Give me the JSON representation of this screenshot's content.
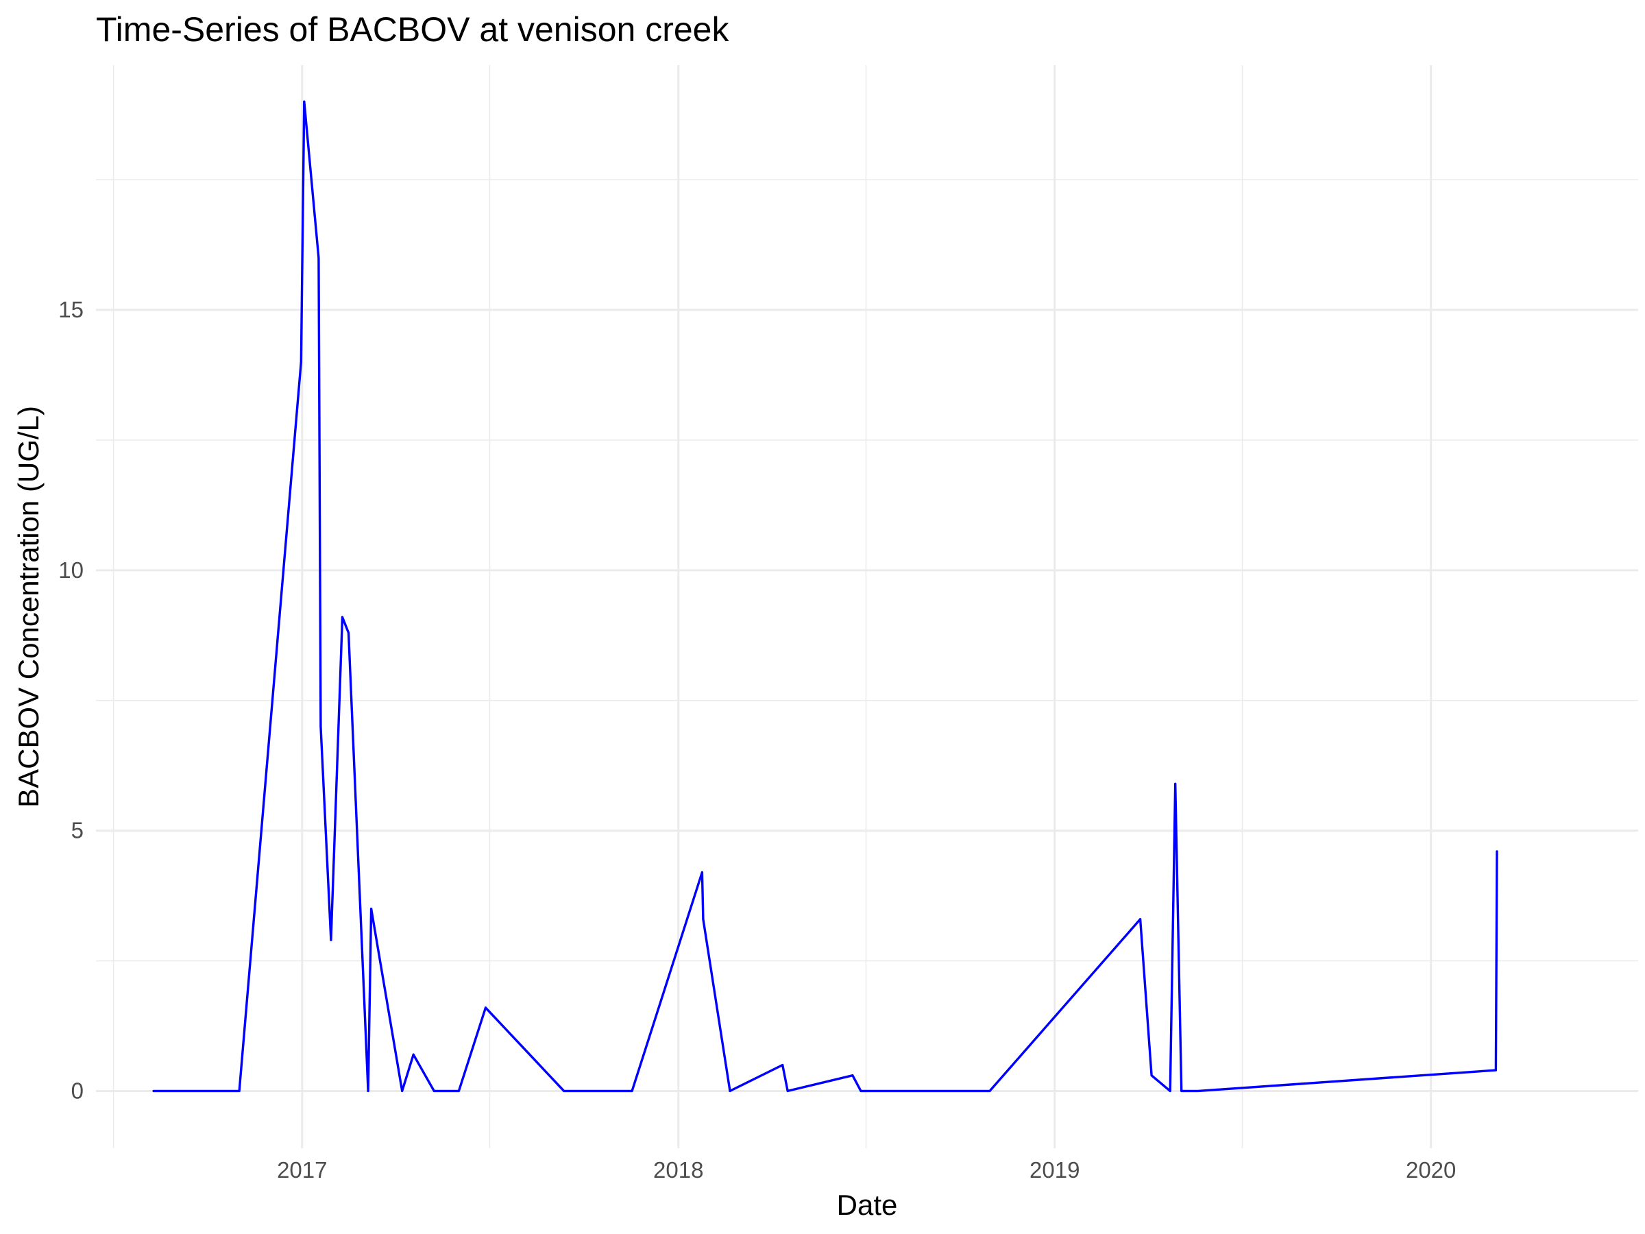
{
  "chart_data": {
    "type": "line",
    "title": "Time-Series of BACBOV at venison creek",
    "xlabel": "Date",
    "ylabel": "BACBOV Concentration (UG/L)",
    "x_type": "date",
    "xlim": [
      "2016-06-15",
      "2020-07-20"
    ],
    "ylim": [
      -1.1,
      19.7
    ],
    "x_ticks": [
      {
        "date": "2017-01-01",
        "label": "2017"
      },
      {
        "date": "2018-01-01",
        "label": "2018"
      },
      {
        "date": "2019-01-01",
        "label": "2019"
      },
      {
        "date": "2020-01-01",
        "label": "2020"
      }
    ],
    "x_minor_ticks": [
      "2016-07-02",
      "2017-07-02",
      "2018-07-02",
      "2019-07-02"
    ],
    "y_ticks": [
      0,
      5,
      10,
      15
    ],
    "y_minor_ticks": [
      2.5,
      7.5,
      12.5,
      17.5
    ],
    "grid": true,
    "legend": "none",
    "series": [
      {
        "color": "#0000ff",
        "points": [
          {
            "x": "2016-08-10",
            "y": 0
          },
          {
            "x": "2016-11-01",
            "y": 0
          },
          {
            "x": "2016-12-31",
            "y": 14
          },
          {
            "x": "2017-01-03",
            "y": 19
          },
          {
            "x": "2017-01-17",
            "y": 16
          },
          {
            "x": "2017-01-19",
            "y": 7
          },
          {
            "x": "2017-01-29",
            "y": 2.9
          },
          {
            "x": "2017-02-09",
            "y": 9.1
          },
          {
            "x": "2017-02-15",
            "y": 8.8
          },
          {
            "x": "2017-03-06",
            "y": 0
          },
          {
            "x": "2017-03-09",
            "y": 3.5
          },
          {
            "x": "2017-04-08",
            "y": 0
          },
          {
            "x": "2017-04-19",
            "y": 0.7
          },
          {
            "x": "2017-05-09",
            "y": 0
          },
          {
            "x": "2017-06-02",
            "y": 0
          },
          {
            "x": "2017-06-28",
            "y": 1.6
          },
          {
            "x": "2017-09-12",
            "y": 0
          },
          {
            "x": "2017-11-17",
            "y": 0
          },
          {
            "x": "2018-01-24",
            "y": 4.2
          },
          {
            "x": "2018-01-25",
            "y": 3.3
          },
          {
            "x": "2018-02-20",
            "y": 0
          },
          {
            "x": "2018-04-12",
            "y": 0.5
          },
          {
            "x": "2018-04-17",
            "y": 0
          },
          {
            "x": "2018-06-19",
            "y": 0.3
          },
          {
            "x": "2018-06-27",
            "y": 0
          },
          {
            "x": "2018-10-30",
            "y": 0
          },
          {
            "x": "2019-03-25",
            "y": 3.3
          },
          {
            "x": "2019-04-05",
            "y": 0.3
          },
          {
            "x": "2019-04-23",
            "y": 0
          },
          {
            "x": "2019-04-28",
            "y": 5.9
          },
          {
            "x": "2019-05-04",
            "y": 0
          },
          {
            "x": "2019-05-20",
            "y": 0
          },
          {
            "x": "2020-03-04",
            "y": 0.4
          },
          {
            "x": "2020-03-05",
            "y": 4.6
          }
        ]
      }
    ]
  }
}
